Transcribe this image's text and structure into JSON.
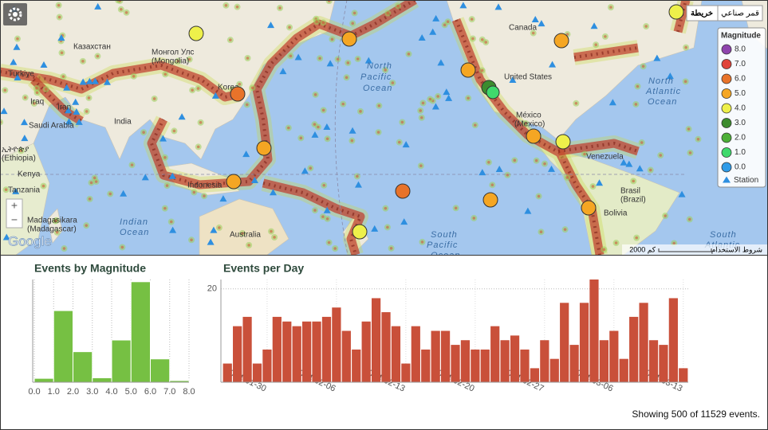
{
  "map": {
    "labels": [
      "Казахстан",
      "Монгол Улс",
      "(Mongolia)",
      "Türkiye",
      "Iraq",
      "Iran",
      "Saudi Arabia",
      "India",
      "ኢትዮጵያ",
      "(Ethiopia)",
      "Kenya",
      "Tanzania",
      "Madagasikara",
      "(Madagascar)",
      "Indian",
      "Ocean",
      "Indonesia",
      "Australia",
      "Korea",
      "North",
      "Pacific",
      "Ocean",
      "Canada",
      "United States",
      "México",
      "(Mexico)",
      "Venezuela",
      "Brasil",
      "(Brazil)",
      "Bolivia",
      "North",
      "Atlantic",
      "Ocean",
      "South",
      "Pacific",
      "Ocean",
      "South",
      "Atlantic"
    ],
    "map_button": "خريطة",
    "satellite_button": "قمر صناعي",
    "zoom_in": "+",
    "zoom_out": "−",
    "logo": "Google",
    "scale": "2000 كم",
    "terms": "شروط الاستخدام",
    "legend": {
      "title": "Magnitude",
      "items": [
        "8.0",
        "7.0",
        "6.0",
        "5.0",
        "4.0",
        "3.0",
        "2.0",
        "1.0",
        "0.0"
      ],
      "colors": [
        "#8e44ad",
        "#e0443a",
        "#e8732a",
        "#f5a623",
        "#eef04a",
        "#3c8c2e",
        "#4caf38",
        "#3fd96c",
        "#2e9be8"
      ],
      "station": "Station"
    }
  },
  "chart_data": [
    {
      "type": "histogram",
      "title": "Events by Magnitude",
      "color": "#76c043",
      "bins": [
        0,
        1,
        2,
        3,
        4,
        5,
        6,
        7,
        8
      ],
      "values": [
        7,
        129,
        55,
        8,
        76,
        181,
        42,
        3
      ],
      "ylim": [
        0,
        185
      ],
      "xlim": [
        0,
        8
      ],
      "xticks": [
        {
          "value": 0,
          "label": "0.0"
        },
        {
          "value": 1,
          "label": "1.0"
        },
        {
          "value": 2,
          "label": "2.0"
        },
        {
          "value": 3,
          "label": "3.0"
        },
        {
          "value": 4,
          "label": "4.0"
        },
        {
          "value": 5,
          "label": "5.0"
        },
        {
          "value": 6,
          "label": "6.0"
        },
        {
          "value": 7,
          "label": "7.0"
        },
        {
          "value": 8,
          "label": "8.0"
        }
      ],
      "grid": true
    },
    {
      "type": "bar",
      "title": "Events per Day",
      "color": "#c9503a",
      "categories": [
        "2014-01-26",
        "2014-01-27",
        "2014-01-28",
        "2014-01-29",
        "2014-01-30",
        "2014-01-31",
        "2014-02-01",
        "2014-02-02",
        "2014-02-03",
        "2014-02-04",
        "2014-02-05",
        "2014-02-06",
        "2014-02-07",
        "2014-02-08",
        "2014-02-09",
        "2014-02-10",
        "2014-02-11",
        "2014-02-12",
        "2014-02-13",
        "2014-02-14",
        "2014-02-15",
        "2014-02-16",
        "2014-02-17",
        "2014-02-18",
        "2014-02-19",
        "2014-02-20",
        "2014-02-21",
        "2014-02-22",
        "2014-02-23",
        "2014-02-24",
        "2014-02-25",
        "2014-02-26",
        "2014-02-27",
        "2014-02-28",
        "2014-03-01",
        "2014-03-02",
        "2014-03-03",
        "2014-03-04",
        "2014-03-05",
        "2014-03-06",
        "2014-03-07",
        "2014-03-08",
        "2014-03-09",
        "2014-03-10",
        "2014-03-11",
        "2014-03-12",
        "2014-03-13"
      ],
      "values": [
        4,
        12,
        14,
        4,
        7,
        14,
        13,
        12,
        13,
        13,
        14,
        16,
        11,
        7,
        13,
        18,
        15,
        12,
        4,
        12,
        7,
        11,
        11,
        8,
        9,
        7,
        7,
        12,
        9,
        10,
        7,
        3,
        9,
        5,
        17,
        8,
        17,
        22,
        9,
        11,
        5,
        14,
        17,
        9,
        8,
        18,
        3
      ],
      "xticks": [
        "2014-01-30",
        "2014-02-06",
        "2014-02-13",
        "2014-02-20",
        "2014-02-27",
        "2014-03-06",
        "2014-03-13"
      ],
      "ylim": [
        0,
        22
      ],
      "yticks": [
        20
      ],
      "grid": true
    }
  ],
  "footer": "Showing 500 of 11529 events."
}
